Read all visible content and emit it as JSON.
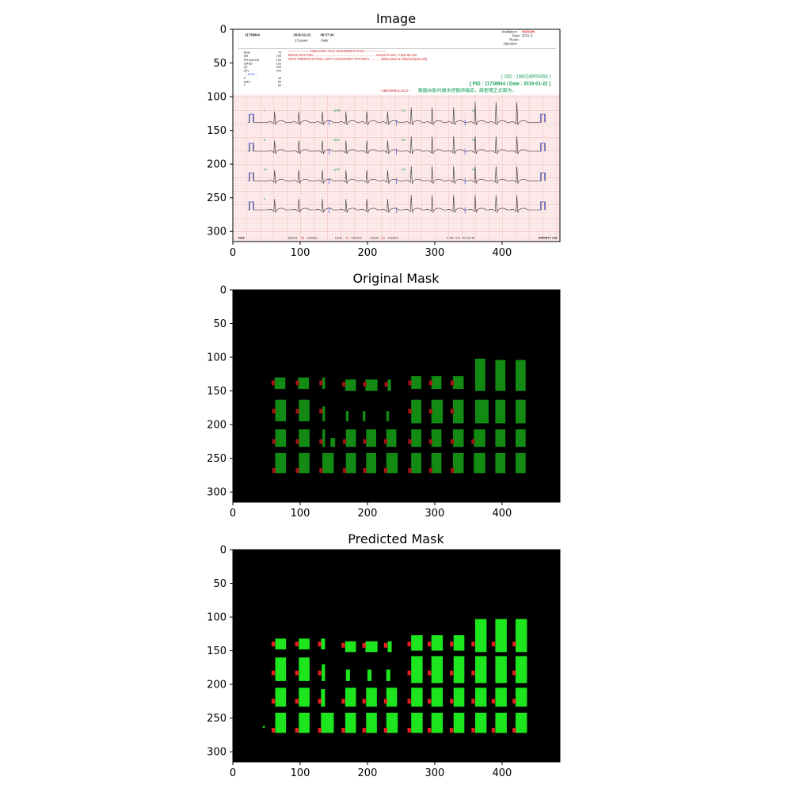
{
  "chart_data": [
    {
      "type": "image",
      "title": "Image",
      "x_ticks": [
        0,
        100,
        200,
        300,
        400
      ],
      "y_ticks": [
        0,
        50,
        100,
        150,
        200,
        250,
        300
      ],
      "xlim": [
        0,
        486
      ],
      "ylim": [
        315,
        0
      ],
      "content": {
        "pid_top": "11738944",
        "date_top": "2016-01-22",
        "time_top": "09:37:34",
        "age": "13 years",
        "sex": "Male",
        "institution_label": "Institution:",
        "institution_value": "NCKUH",
        "dept_label": "Dept:",
        "dept_value": "ECG 3.",
        "room_label": "Room:",
        "operator_label": "Operator:",
        "measurements": [
          {
            "label": "Rate",
            "value": "75"
          },
          {
            "label": "RR",
            "value": "799"
          },
          {
            "label": "PR Interval",
            "value": "120"
          },
          {
            "label": "QRSD",
            "value": "122"
          },
          {
            "label": "QT",
            "value": "392"
          },
          {
            "label": "QTc",
            "value": "441"
          },
          {
            "label": "-- AXIS --",
            "value": ""
          },
          {
            "label": "P",
            "value": "49"
          },
          {
            "label": "QRS",
            "value": "84"
          },
          {
            "label": "T",
            "value": "54"
          }
        ],
        "interp_header": "-------------------- PEDIATRIC ECG INTERPRETATION --------------------",
        "interp_lines": [
          {
            "text": "SINUS RHYTHM.......................................................................normal P axis, V-rate 60-110",
            "color": "#d02020"
          },
          {
            "text": "VENT PREEXCITATION, LEFT ACCESSORY PATHWAY ........... Delta wave & initial axis(30,120)",
            "color": "#d02020"
          }
        ],
        "uid": "[ UID : 166016P00454 ]",
        "pid_date": "[ PID : 11738944 / Date : 2016-01-22 ]",
        "abnormal": "- ABNORMAL ECG -",
        "chinese_note": "電腦自動判讀未經醫師確認，請查閱正式報告。",
        "lead_labels": [
          "I",
          "aVR",
          "V1",
          "V4",
          "II",
          "aVL",
          "V2",
          "V5",
          "III",
          "aVF",
          "V3",
          "V6",
          "II"
        ],
        "footer": {
          "fda": "FDA",
          "speed_label": "Speed:",
          "speed_value": "25",
          "speed_unit": "mm/sec",
          "limb_label": "Limb:",
          "limb_value": "10",
          "limb_unit": "mm/mV",
          "chest_label": "Chest:",
          "chest_value": "10",
          "chest_unit": "mm/mV",
          "filter": "F 60~ 0.5 - 40 Hz W",
          "device": "INFINITT CIS"
        }
      }
    },
    {
      "type": "segmentation_mask",
      "title": "Original Mask",
      "x_ticks": [
        0,
        100,
        200,
        300,
        400
      ],
      "y_ticks": [
        0,
        50,
        100,
        150,
        200,
        250,
        300
      ],
      "xlim": [
        0,
        486
      ],
      "ylim": [
        315,
        0
      ],
      "colors": {
        "background": "#000000",
        "region": "#138a13",
        "marker": "#a01414"
      },
      "regions": [
        {
          "x0": 62,
          "x1": 78,
          "y0": 130,
          "y1": 147
        },
        {
          "x0": 97,
          "x1": 113,
          "y0": 130,
          "y1": 147
        },
        {
          "x0": 133,
          "x1": 137,
          "y0": 130,
          "y1": 147
        },
        {
          "x0": 167,
          "x1": 183,
          "y0": 133,
          "y1": 150
        },
        {
          "x0": 197,
          "x1": 215,
          "y0": 133,
          "y1": 150
        },
        {
          "x0": 230,
          "x1": 235,
          "y0": 133,
          "y1": 150
        },
        {
          "x0": 265,
          "x1": 280,
          "y0": 128,
          "y1": 147
        },
        {
          "x0": 295,
          "x1": 310,
          "y0": 128,
          "y1": 147
        },
        {
          "x0": 327,
          "x1": 343,
          "y0": 128,
          "y1": 147
        },
        {
          "x0": 360,
          "x1": 375,
          "y0": 102,
          "y1": 150
        },
        {
          "x0": 390,
          "x1": 405,
          "y0": 104,
          "y1": 150
        },
        {
          "x0": 420,
          "x1": 435,
          "y0": 104,
          "y1": 150
        },
        {
          "x0": 63,
          "x1": 79,
          "y0": 163,
          "y1": 195
        },
        {
          "x0": 98,
          "x1": 114,
          "y0": 163,
          "y1": 195
        },
        {
          "x0": 133,
          "x1": 137,
          "y0": 173,
          "y1": 195
        },
        {
          "x0": 168,
          "x1": 172,
          "y0": 180,
          "y1": 195
        },
        {
          "x0": 193,
          "x1": 197,
          "y0": 180,
          "y1": 195
        },
        {
          "x0": 228,
          "x1": 232,
          "y0": 180,
          "y1": 195
        },
        {
          "x0": 265,
          "x1": 280,
          "y0": 163,
          "y1": 198
        },
        {
          "x0": 295,
          "x1": 312,
          "y0": 163,
          "y1": 198
        },
        {
          "x0": 327,
          "x1": 343,
          "y0": 163,
          "y1": 198
        },
        {
          "x0": 360,
          "x1": 380,
          "y0": 163,
          "y1": 198
        },
        {
          "x0": 390,
          "x1": 405,
          "y0": 163,
          "y1": 198
        },
        {
          "x0": 420,
          "x1": 435,
          "y0": 163,
          "y1": 198
        },
        {
          "x0": 63,
          "x1": 79,
          "y0": 207,
          "y1": 233
        },
        {
          "x0": 98,
          "x1": 114,
          "y0": 207,
          "y1": 233
        },
        {
          "x0": 133,
          "x1": 137,
          "y0": 207,
          "y1": 233
        },
        {
          "x0": 145,
          "x1": 152,
          "y0": 220,
          "y1": 233
        },
        {
          "x0": 168,
          "x1": 183,
          "y0": 207,
          "y1": 233
        },
        {
          "x0": 198,
          "x1": 213,
          "y0": 207,
          "y1": 233
        },
        {
          "x0": 228,
          "x1": 243,
          "y0": 207,
          "y1": 233
        },
        {
          "x0": 265,
          "x1": 280,
          "y0": 207,
          "y1": 233
        },
        {
          "x0": 295,
          "x1": 310,
          "y0": 207,
          "y1": 233
        },
        {
          "x0": 327,
          "x1": 343,
          "y0": 207,
          "y1": 233
        },
        {
          "x0": 358,
          "x1": 375,
          "y0": 207,
          "y1": 233
        },
        {
          "x0": 390,
          "x1": 405,
          "y0": 207,
          "y1": 233
        },
        {
          "x0": 420,
          "x1": 435,
          "y0": 207,
          "y1": 233
        },
        {
          "x0": 63,
          "x1": 79,
          "y0": 242,
          "y1": 272
        },
        {
          "x0": 98,
          "x1": 114,
          "y0": 242,
          "y1": 272
        },
        {
          "x0": 133,
          "x1": 150,
          "y0": 242,
          "y1": 272
        },
        {
          "x0": 168,
          "x1": 183,
          "y0": 242,
          "y1": 272
        },
        {
          "x0": 198,
          "x1": 213,
          "y0": 242,
          "y1": 272
        },
        {
          "x0": 228,
          "x1": 245,
          "y0": 242,
          "y1": 272
        },
        {
          "x0": 265,
          "x1": 280,
          "y0": 242,
          "y1": 272
        },
        {
          "x0": 295,
          "x1": 310,
          "y0": 242,
          "y1": 272
        },
        {
          "x0": 327,
          "x1": 343,
          "y0": 242,
          "y1": 272
        },
        {
          "x0": 358,
          "x1": 375,
          "y0": 242,
          "y1": 272
        },
        {
          "x0": 390,
          "x1": 405,
          "y0": 242,
          "y1": 272
        },
        {
          "x0": 420,
          "x1": 435,
          "y0": 242,
          "y1": 272
        }
      ],
      "markers": [
        {
          "x": 60,
          "y": 138
        },
        {
          "x": 96,
          "y": 138
        },
        {
          "x": 131,
          "y": 138
        },
        {
          "x": 165,
          "y": 140
        },
        {
          "x": 196,
          "y": 140
        },
        {
          "x": 228,
          "y": 140
        },
        {
          "x": 263,
          "y": 138
        },
        {
          "x": 294,
          "y": 138
        },
        {
          "x": 326,
          "y": 138
        },
        {
          "x": 61,
          "y": 180
        },
        {
          "x": 96,
          "y": 180
        },
        {
          "x": 131,
          "y": 180
        },
        {
          "x": 263,
          "y": 180
        },
        {
          "x": 294,
          "y": 180
        },
        {
          "x": 326,
          "y": 180
        },
        {
          "x": 61,
          "y": 225
        },
        {
          "x": 96,
          "y": 225
        },
        {
          "x": 131,
          "y": 225
        },
        {
          "x": 166,
          "y": 225
        },
        {
          "x": 196,
          "y": 225
        },
        {
          "x": 227,
          "y": 225
        },
        {
          "x": 263,
          "y": 225
        },
        {
          "x": 294,
          "y": 225
        },
        {
          "x": 326,
          "y": 225
        },
        {
          "x": 357,
          "y": 225
        },
        {
          "x": 61,
          "y": 268
        },
        {
          "x": 96,
          "y": 268
        },
        {
          "x": 131,
          "y": 268
        },
        {
          "x": 166,
          "y": 268
        },
        {
          "x": 196,
          "y": 268
        },
        {
          "x": 227,
          "y": 268
        },
        {
          "x": 263,
          "y": 268
        },
        {
          "x": 294,
          "y": 268
        },
        {
          "x": 326,
          "y": 268
        }
      ]
    },
    {
      "type": "segmentation_mask",
      "title": "Predicted Mask",
      "x_ticks": [
        0,
        100,
        200,
        300,
        400
      ],
      "y_ticks": [
        0,
        50,
        100,
        150,
        200,
        250,
        300
      ],
      "xlim": [
        0,
        486
      ],
      "ylim": [
        315,
        0
      ],
      "colors": {
        "background": "#000000",
        "region": "#1ee61e",
        "marker": "#e61e1e"
      },
      "regions": [
        {
          "x0": 63,
          "x1": 79,
          "y0": 132,
          "y1": 148
        },
        {
          "x0": 98,
          "x1": 114,
          "y0": 132,
          "y1": 148
        },
        {
          "x0": 131,
          "x1": 137,
          "y0": 132,
          "y1": 148
        },
        {
          "x0": 167,
          "x1": 183,
          "y0": 136,
          "y1": 152
        },
        {
          "x0": 197,
          "x1": 215,
          "y0": 136,
          "y1": 152
        },
        {
          "x0": 230,
          "x1": 236,
          "y0": 136,
          "y1": 152
        },
        {
          "x0": 265,
          "x1": 282,
          "y0": 127,
          "y1": 150
        },
        {
          "x0": 295,
          "x1": 312,
          "y0": 127,
          "y1": 150
        },
        {
          "x0": 328,
          "x1": 344,
          "y0": 127,
          "y1": 150
        },
        {
          "x0": 360,
          "x1": 377,
          "y0": 103,
          "y1": 152
        },
        {
          "x0": 390,
          "x1": 407,
          "y0": 103,
          "y1": 152
        },
        {
          "x0": 420,
          "x1": 437,
          "y0": 103,
          "y1": 152
        },
        {
          "x0": 63,
          "x1": 79,
          "y0": 160,
          "y1": 195
        },
        {
          "x0": 98,
          "x1": 114,
          "y0": 160,
          "y1": 195
        },
        {
          "x0": 132,
          "x1": 137,
          "y0": 170,
          "y1": 195
        },
        {
          "x0": 168,
          "x1": 174,
          "y0": 178,
          "y1": 195
        },
        {
          "x0": 200,
          "x1": 206,
          "y0": 178,
          "y1": 195
        },
        {
          "x0": 228,
          "x1": 234,
          "y0": 178,
          "y1": 195
        },
        {
          "x0": 265,
          "x1": 282,
          "y0": 158,
          "y1": 198
        },
        {
          "x0": 295,
          "x1": 312,
          "y0": 158,
          "y1": 198
        },
        {
          "x0": 328,
          "x1": 344,
          "y0": 158,
          "y1": 198
        },
        {
          "x0": 360,
          "x1": 377,
          "y0": 158,
          "y1": 198
        },
        {
          "x0": 390,
          "x1": 407,
          "y0": 158,
          "y1": 198
        },
        {
          "x0": 420,
          "x1": 437,
          "y0": 158,
          "y1": 198
        },
        {
          "x0": 63,
          "x1": 79,
          "y0": 205,
          "y1": 233
        },
        {
          "x0": 98,
          "x1": 114,
          "y0": 205,
          "y1": 233
        },
        {
          "x0": 131,
          "x1": 137,
          "y0": 207,
          "y1": 233
        },
        {
          "x0": 167,
          "x1": 183,
          "y0": 205,
          "y1": 233
        },
        {
          "x0": 198,
          "x1": 214,
          "y0": 205,
          "y1": 233
        },
        {
          "x0": 228,
          "x1": 244,
          "y0": 205,
          "y1": 233
        },
        {
          "x0": 265,
          "x1": 282,
          "y0": 205,
          "y1": 233
        },
        {
          "x0": 295,
          "x1": 312,
          "y0": 205,
          "y1": 233
        },
        {
          "x0": 328,
          "x1": 344,
          "y0": 205,
          "y1": 233
        },
        {
          "x0": 360,
          "x1": 377,
          "y0": 205,
          "y1": 233
        },
        {
          "x0": 390,
          "x1": 407,
          "y0": 205,
          "y1": 233
        },
        {
          "x0": 420,
          "x1": 437,
          "y0": 205,
          "y1": 233
        },
        {
          "x0": 63,
          "x1": 79,
          "y0": 242,
          "y1": 272
        },
        {
          "x0": 98,
          "x1": 114,
          "y0": 242,
          "y1": 272
        },
        {
          "x0": 131,
          "x1": 150,
          "y0": 242,
          "y1": 272
        },
        {
          "x0": 167,
          "x1": 183,
          "y0": 242,
          "y1": 272
        },
        {
          "x0": 198,
          "x1": 214,
          "y0": 242,
          "y1": 272
        },
        {
          "x0": 228,
          "x1": 245,
          "y0": 242,
          "y1": 272
        },
        {
          "x0": 265,
          "x1": 282,
          "y0": 242,
          "y1": 272
        },
        {
          "x0": 295,
          "x1": 312,
          "y0": 242,
          "y1": 272
        },
        {
          "x0": 328,
          "x1": 344,
          "y0": 242,
          "y1": 272
        },
        {
          "x0": 360,
          "x1": 377,
          "y0": 242,
          "y1": 272
        },
        {
          "x0": 390,
          "x1": 407,
          "y0": 242,
          "y1": 272
        },
        {
          "x0": 420,
          "x1": 437,
          "y0": 242,
          "y1": 272
        }
      ],
      "markers": [
        {
          "x": 60,
          "y": 140
        },
        {
          "x": 95,
          "y": 140
        },
        {
          "x": 129,
          "y": 140
        },
        {
          "x": 164,
          "y": 142
        },
        {
          "x": 195,
          "y": 142
        },
        {
          "x": 227,
          "y": 142
        },
        {
          "x": 262,
          "y": 140
        },
        {
          "x": 292,
          "y": 140
        },
        {
          "x": 325,
          "y": 140
        },
        {
          "x": 357,
          "y": 140
        },
        {
          "x": 387,
          "y": 140
        },
        {
          "x": 418,
          "y": 140
        },
        {
          "x": 60,
          "y": 183
        },
        {
          "x": 95,
          "y": 183
        },
        {
          "x": 129,
          "y": 183
        },
        {
          "x": 262,
          "y": 183
        },
        {
          "x": 292,
          "y": 183
        },
        {
          "x": 325,
          "y": 183
        },
        {
          "x": 357,
          "y": 183
        },
        {
          "x": 418,
          "y": 183
        },
        {
          "x": 60,
          "y": 225
        },
        {
          "x": 95,
          "y": 225
        },
        {
          "x": 129,
          "y": 225
        },
        {
          "x": 164,
          "y": 225
        },
        {
          "x": 195,
          "y": 225
        },
        {
          "x": 227,
          "y": 225
        },
        {
          "x": 262,
          "y": 225
        },
        {
          "x": 292,
          "y": 225
        },
        {
          "x": 325,
          "y": 225
        },
        {
          "x": 357,
          "y": 225
        },
        {
          "x": 387,
          "y": 225
        },
        {
          "x": 418,
          "y": 225
        },
        {
          "x": 60,
          "y": 268
        },
        {
          "x": 95,
          "y": 268
        },
        {
          "x": 129,
          "y": 268
        },
        {
          "x": 164,
          "y": 268
        },
        {
          "x": 195,
          "y": 268
        },
        {
          "x": 227,
          "y": 268
        },
        {
          "x": 262,
          "y": 268
        },
        {
          "x": 292,
          "y": 268
        },
        {
          "x": 325,
          "y": 268
        },
        {
          "x": 357,
          "y": 268
        },
        {
          "x": 387,
          "y": 268
        },
        {
          "x": 418,
          "y": 268
        }
      ],
      "specks": [
        {
          "x": 46,
          "y": 263
        }
      ]
    }
  ]
}
